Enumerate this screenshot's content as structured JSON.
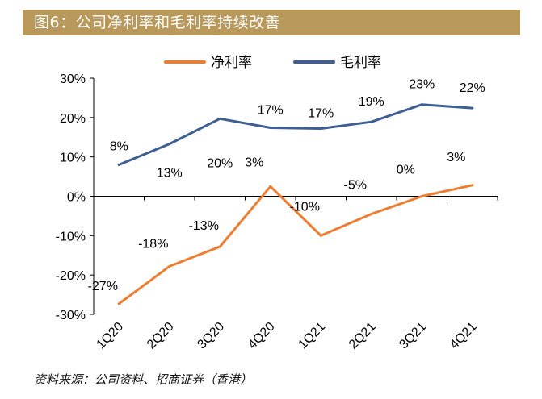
{
  "figure": {
    "title": "图6：公司净利率和毛利率持续改善",
    "source": "资料来源：公司资料、招商证券（香港）"
  },
  "chart_data": {
    "type": "line",
    "categories": [
      "1Q20",
      "2Q20",
      "3Q20",
      "4Q20",
      "1Q21",
      "2Q21",
      "3Q21",
      "4Q21"
    ],
    "series": [
      {
        "name": "净利率",
        "color": "#ed7d31",
        "values": [
          -27.3,
          -17.8,
          -12.8,
          2.5,
          -10.0,
          -4.5,
          0.0,
          2.8
        ],
        "labels": [
          "-27%",
          "-18%",
          "-13%",
          "3%",
          "-10%",
          "-5%",
          "0%",
          "3%"
        ]
      },
      {
        "name": "毛利率",
        "color": "#3e5f94",
        "values": [
          8.0,
          13.3,
          19.7,
          17.4,
          17.2,
          18.9,
          23.3,
          22.4
        ],
        "labels": [
          "8%",
          "13%",
          "20%",
          "17%",
          "17%",
          "19%",
          "23%",
          "22%"
        ]
      }
    ],
    "ylim": [
      -30,
      30
    ],
    "yticks": [
      30,
      20,
      10,
      0,
      -10,
      -20,
      -30
    ],
    "ytick_labels": [
      "30%",
      "20%",
      "10%",
      "0%",
      "-10%",
      "-20%",
      "-30%"
    ],
    "xlabel": "",
    "ylabel": "",
    "grid": false,
    "legend_position": "top"
  }
}
